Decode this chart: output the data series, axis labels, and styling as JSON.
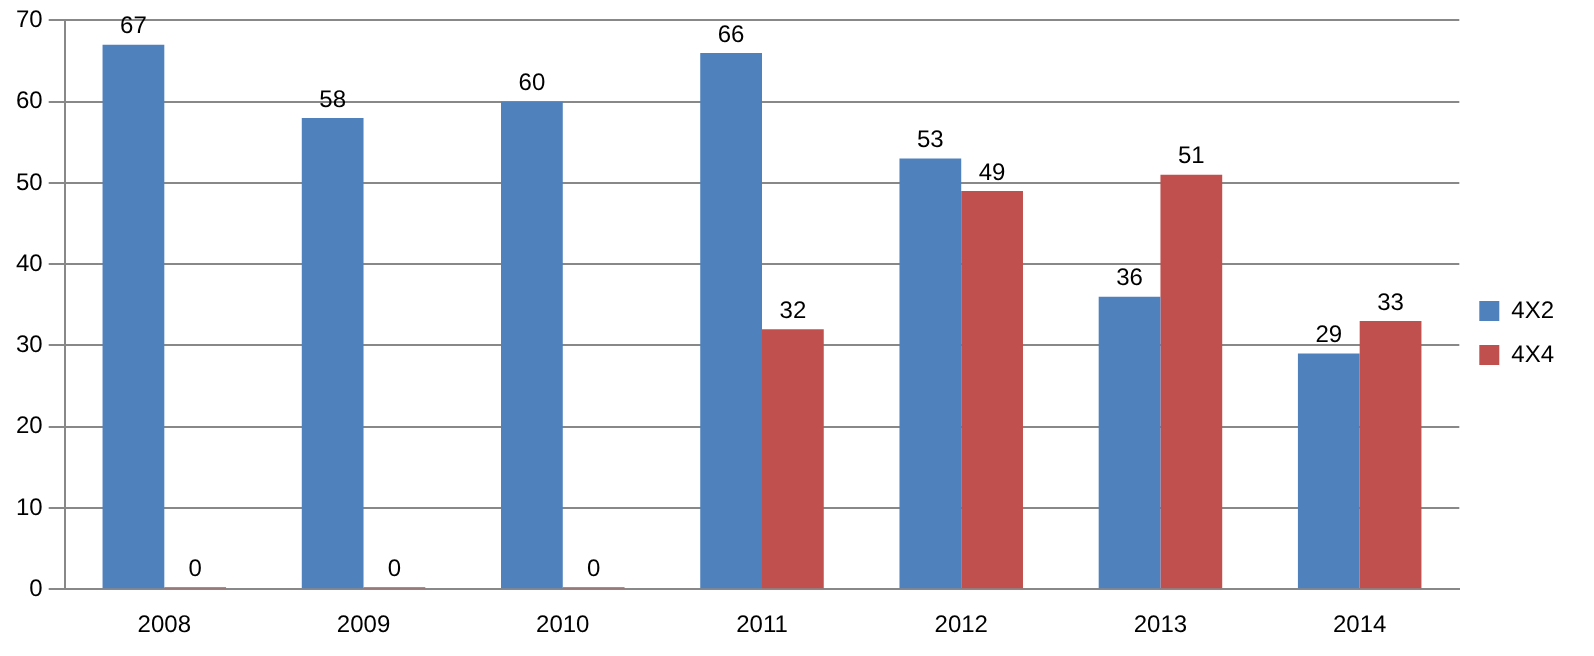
{
  "chart_data": {
    "type": "bar",
    "categories": [
      "2008",
      "2009",
      "2010",
      "2011",
      "2012",
      "2013",
      "2014"
    ],
    "series": [
      {
        "name": "4X2",
        "color": "#4f81bd",
        "values": [
          67,
          58,
          60,
          66,
          53,
          36,
          29
        ]
      },
      {
        "name": "4X4",
        "color": "#c0504d",
        "values": [
          0,
          0,
          0,
          32,
          49,
          51,
          33
        ]
      }
    ],
    "ylim": [
      0,
      70
    ],
    "yticks": [
      0,
      10,
      20,
      30,
      40,
      50,
      60,
      70
    ],
    "grid": "y",
    "legend": "right",
    "data_labels": true
  }
}
